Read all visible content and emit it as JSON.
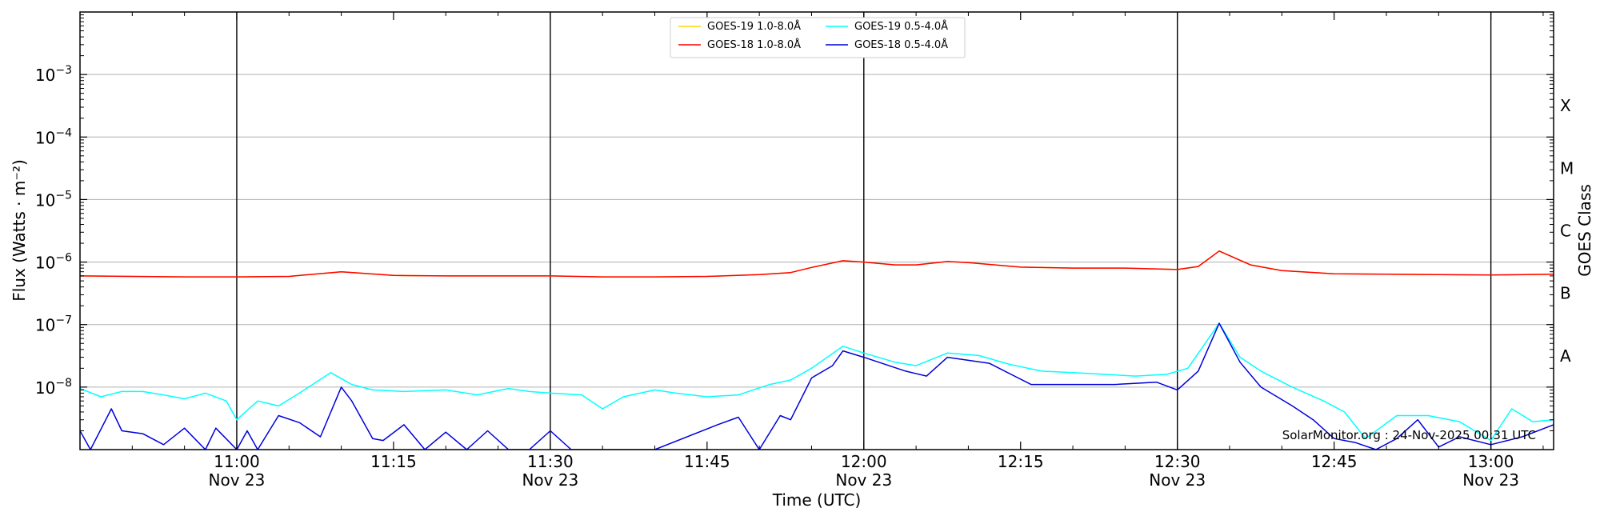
{
  "chart_data": {
    "type": "line",
    "title": "",
    "xlabel": "Time (UTC)",
    "ylabel": "Flux (Watts · m⁻²)",
    "ylabel_right": "GOES Class",
    "credit": "SolarMonitor.org : 24-Nov-2025 00:31 UTC",
    "x_range": [
      "2025-11-23 10:45",
      "2025-11-23 13:06"
    ],
    "y_scale": "log",
    "ylim": [
      1e-09,
      0.01
    ],
    "grid": "horizontal at decades",
    "legend_position": "top-center",
    "x_ticks": [
      {
        "time": "11:00",
        "date": "Nov 23",
        "major": true
      },
      {
        "time": "11:15",
        "date": "",
        "major": false
      },
      {
        "time": "11:30",
        "date": "Nov 23",
        "major": true
      },
      {
        "time": "11:45",
        "date": "",
        "major": false
      },
      {
        "time": "12:00",
        "date": "Nov 23",
        "major": true
      },
      {
        "time": "12:15",
        "date": "",
        "major": false
      },
      {
        "time": "12:30",
        "date": "Nov 23",
        "major": true
      },
      {
        "time": "12:45",
        "date": "",
        "major": false
      },
      {
        "time": "13:00",
        "date": "Nov 23",
        "major": true
      }
    ],
    "y_ticks": [
      {
        "value": 1e-08,
        "label_base": "10",
        "label_exp": "−8"
      },
      {
        "value": 1e-07,
        "label_base": "10",
        "label_exp": "−7"
      },
      {
        "value": 1e-06,
        "label_base": "10",
        "label_exp": "−6"
      },
      {
        "value": 1e-05,
        "label_base": "10",
        "label_exp": "−5"
      },
      {
        "value": 0.0001,
        "label_base": "10",
        "label_exp": "−4"
      },
      {
        "value": 0.001,
        "label_base": "10",
        "label_exp": "−3"
      }
    ],
    "goes_classes": [
      {
        "label": "A",
        "value": 3.16e-08
      },
      {
        "label": "B",
        "value": 3.16e-07
      },
      {
        "label": "C",
        "value": 3.16e-06
      },
      {
        "label": "M",
        "value": 3.16e-05
      },
      {
        "label": "X",
        "value": 0.000316
      }
    ],
    "series": [
      {
        "name": "GOES-19 1.0-8.0Å",
        "color": "#ffd700",
        "x": [
          "10:45",
          "10:50",
          "10:55",
          "11:00",
          "11:05",
          "11:10",
          "11:15",
          "11:20",
          "11:25",
          "11:30",
          "11:35",
          "11:40",
          "11:45",
          "11:50",
          "11:53",
          "11:55",
          "11:58",
          "12:00",
          "12:03",
          "12:05",
          "12:08",
          "12:10",
          "12:15",
          "12:20",
          "12:25",
          "12:30",
          "12:32",
          "12:34",
          "12:37",
          "12:40",
          "12:45",
          "12:50",
          "12:55",
          "13:00",
          "13:06"
        ],
        "y": [
          6e-07,
          5.9e-07,
          5.8e-07,
          5.8e-07,
          5.9e-07,
          7e-07,
          6.1e-07,
          6e-07,
          6e-07,
          6e-07,
          5.8e-07,
          5.8e-07,
          5.9e-07,
          6.3e-07,
          6.8e-07,
          8.2e-07,
          1.05e-06,
          1e-06,
          9e-07,
          9e-07,
          1.02e-06,
          9.8e-07,
          8.3e-07,
          8e-07,
          8e-07,
          7.6e-07,
          8.5e-07,
          1.5e-06,
          9e-07,
          7.3e-07,
          6.5e-07,
          6.4e-07,
          6.3e-07,
          6.2e-07,
          6.4e-07
        ]
      },
      {
        "name": "GOES-18 1.0-8.0Å",
        "color": "#ff0000",
        "x": [
          "10:45",
          "10:50",
          "10:55",
          "11:00",
          "11:05",
          "11:10",
          "11:15",
          "11:20",
          "11:25",
          "11:30",
          "11:35",
          "11:40",
          "11:45",
          "11:50",
          "11:53",
          "11:55",
          "11:58",
          "12:00",
          "12:03",
          "12:05",
          "12:08",
          "12:10",
          "12:15",
          "12:20",
          "12:25",
          "12:30",
          "12:32",
          "12:34",
          "12:37",
          "12:40",
          "12:45",
          "12:50",
          "12:55",
          "13:00",
          "13:06"
        ],
        "y": [
          6e-07,
          5.9e-07,
          5.8e-07,
          5.8e-07,
          5.9e-07,
          7e-07,
          6.1e-07,
          6e-07,
          6e-07,
          6e-07,
          5.8e-07,
          5.8e-07,
          5.9e-07,
          6.3e-07,
          6.8e-07,
          8.2e-07,
          1.05e-06,
          1e-06,
          9e-07,
          9e-07,
          1.02e-06,
          9.8e-07,
          8.3e-07,
          8e-07,
          8e-07,
          7.6e-07,
          8.5e-07,
          1.5e-06,
          9e-07,
          7.3e-07,
          6.5e-07,
          6.4e-07,
          6.3e-07,
          6.2e-07,
          6.4e-07
        ]
      },
      {
        "name": "GOES-19 0.5-4.0Å",
        "color": "#00ffff",
        "x": [
          "10:45",
          "10:47",
          "10:49",
          "10:51",
          "10:53",
          "10:55",
          "10:57",
          "10:59",
          "11:00",
          "11:02",
          "11:04",
          "11:06",
          "11:09",
          "11:11",
          "11:13",
          "11:16",
          "11:20",
          "11:23",
          "11:26",
          "11:28",
          "11:30",
          "11:33",
          "11:35",
          "11:37",
          "11:40",
          "11:42",
          "11:45",
          "11:48",
          "11:51",
          "11:53",
          "11:55",
          "11:58",
          "12:00",
          "12:03",
          "12:05",
          "12:08",
          "12:11",
          "12:14",
          "12:17",
          "12:20",
          "12:23",
          "12:26",
          "12:29",
          "12:31",
          "12:34",
          "12:36",
          "12:38",
          "12:41",
          "12:44",
          "12:46",
          "12:48",
          "12:51",
          "12:54",
          "12:57",
          "13:00",
          "13:02",
          "13:04",
          "13:06"
        ],
        "y": [
          9.5e-09,
          7e-09,
          8.5e-09,
          8.5e-09,
          7.5e-09,
          6.5e-09,
          8e-09,
          6e-09,
          3e-09,
          6e-09,
          5e-09,
          8e-09,
          1.7e-08,
          1.1e-08,
          9e-09,
          8.5e-09,
          9e-09,
          7.5e-09,
          9.5e-09,
          8.5e-09,
          8e-09,
          7.5e-09,
          4.5e-09,
          7e-09,
          9e-09,
          8e-09,
          7e-09,
          7.5e-09,
          1.1e-08,
          1.3e-08,
          2e-08,
          4.5e-08,
          3.5e-08,
          2.5e-08,
          2.2e-08,
          3.5e-08,
          3.2e-08,
          2.3e-08,
          1.8e-08,
          1.7e-08,
          1.6e-08,
          1.5e-08,
          1.6e-08,
          2e-08,
          1.05e-07,
          3e-08,
          1.8e-08,
          1e-08,
          6e-09,
          4e-09,
          1.5e-09,
          3.5e-09,
          3.5e-09,
          2.8e-09,
          1.4e-09,
          4.5e-09,
          2.8e-09,
          3e-09
        ]
      },
      {
        "name": "GOES-18 0.5-4.0Å",
        "color": "#0000dd",
        "x": [
          "10:45",
          "10:46",
          "10:48",
          "10:49",
          "10:51",
          "10:53",
          "10:55",
          "10:57",
          "10:58",
          "11:00",
          "11:01",
          "11:02",
          "11:04",
          "11:06",
          "11:08",
          "11:10",
          "11:11",
          "11:13",
          "11:14",
          "11:16",
          "11:18",
          "11:20",
          "11:22",
          "11:24",
          "11:26",
          "11:28",
          "11:30",
          "11:32",
          "11:40",
          "11:46",
          "11:48",
          "11:50",
          "11:52",
          "11:53",
          "11:55",
          "11:57",
          "11:58",
          "12:00",
          "12:04",
          "12:06",
          "12:08",
          "12:12",
          "12:16",
          "12:20",
          "12:24",
          "12:28",
          "12:30",
          "12:32",
          "12:34",
          "12:36",
          "12:38",
          "12:41",
          "12:43",
          "12:45",
          "12:47",
          "12:49",
          "12:51",
          "12:53",
          "12:55",
          "12:57",
          "13:00",
          "13:03",
          "13:06"
        ],
        "y": [
          2e-09,
          1e-09,
          4.5e-09,
          2e-09,
          1.8e-09,
          1.2e-09,
          2.2e-09,
          1e-09,
          2.2e-09,
          1e-09,
          2e-09,
          1e-09,
          3.5e-09,
          2.7e-09,
          1.6e-09,
          1e-08,
          6e-09,
          1.5e-09,
          1.4e-09,
          2.5e-09,
          1e-09,
          1.9e-09,
          1e-09,
          2e-09,
          1e-09,
          1e-09,
          2e-09,
          1e-09,
          1e-09,
          2.5e-09,
          3.3e-09,
          1e-09,
          3.5e-09,
          3e-09,
          1.4e-08,
          2.2e-08,
          3.8e-08,
          3e-08,
          1.8e-08,
          1.5e-08,
          3e-08,
          2.4e-08,
          1.1e-08,
          1.1e-08,
          1.1e-08,
          1.2e-08,
          9e-09,
          1.8e-08,
          1.05e-07,
          2.5e-08,
          1e-08,
          5e-09,
          3e-09,
          1.5e-09,
          1.3e-09,
          1e-09,
          1.5e-09,
          3e-09,
          1.1e-09,
          1.6e-09,
          1.2e-09,
          1.6e-09,
          2.5e-09
        ]
      }
    ]
  }
}
